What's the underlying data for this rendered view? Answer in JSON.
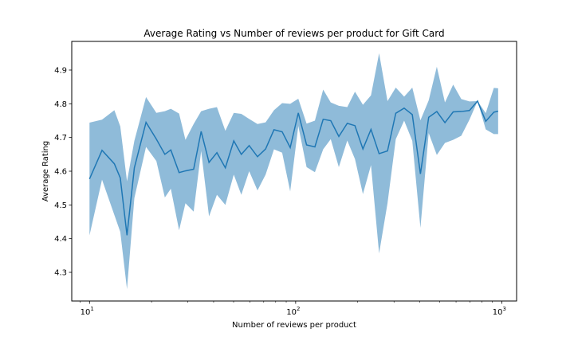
{
  "chart_data": {
    "type": "line",
    "title": "Average Rating vs Number of reviews per product for Gift Card",
    "xlabel": "Number of reviews per product",
    "ylabel": "Average Rating",
    "x_scale": "log",
    "xlim": [
      8.2,
      1180
    ],
    "ylim": [
      4.215,
      4.985
    ],
    "x_ticks": [
      {
        "value": 10,
        "base": "10",
        "exp": "1"
      },
      {
        "value": 100,
        "base": "10",
        "exp": "2"
      },
      {
        "value": 1000,
        "base": "10",
        "exp": "3"
      }
    ],
    "y_ticks": [
      "4.3",
      "4.4",
      "4.5",
      "4.6",
      "4.7",
      "4.8",
      "4.9"
    ],
    "grid": false,
    "line_color": "#1f77b4",
    "band_color": "#1f77b4",
    "series": [
      {
        "x": [
          10,
          11.5,
          13.2,
          14.1,
          15.2,
          16.5,
          18.8,
          21.1,
          23.2,
          24.8,
          27.2,
          29.2,
          32.0,
          34.8,
          38.0,
          41.5,
          45.6,
          50.1,
          54.5,
          59.5,
          65.3,
          71.5,
          78.5,
          86.0,
          94.1,
          103,
          113,
          124,
          136,
          148,
          162,
          178,
          194,
          212,
          232,
          254,
          279,
          306,
          336,
          368,
          403,
          442,
          484,
          530,
          581,
          636,
          697,
          763,
          836,
          915,
          960
        ],
        "mean": [
          4.577,
          4.662,
          4.622,
          4.58,
          4.41,
          4.61,
          4.745,
          4.695,
          4.65,
          4.663,
          4.596,
          4.601,
          4.606,
          4.718,
          4.626,
          4.655,
          4.61,
          4.69,
          4.65,
          4.676,
          4.643,
          4.666,
          4.723,
          4.717,
          4.67,
          4.773,
          4.678,
          4.672,
          4.754,
          4.75,
          4.703,
          4.742,
          4.735,
          4.666,
          4.724,
          4.652,
          4.66,
          4.772,
          4.787,
          4.768,
          4.592,
          4.76,
          4.777,
          4.744,
          4.776,
          4.777,
          4.78,
          4.808,
          4.748,
          4.775,
          4.778
        ],
        "lower": [
          4.41,
          4.575,
          4.47,
          4.42,
          4.25,
          4.52,
          4.672,
          4.63,
          4.522,
          4.548,
          4.425,
          4.505,
          4.48,
          4.66,
          4.466,
          4.53,
          4.5,
          4.59,
          4.53,
          4.6,
          4.543,
          4.59,
          4.665,
          4.655,
          4.54,
          4.734,
          4.612,
          4.597,
          4.665,
          4.695,
          4.612,
          4.691,
          4.636,
          4.532,
          4.618,
          4.356,
          4.505,
          4.695,
          4.75,
          4.69,
          4.432,
          4.713,
          4.648,
          4.684,
          4.693,
          4.705,
          4.753,
          4.808,
          4.724,
          4.71,
          4.71
        ],
        "upper": [
          4.744,
          4.753,
          4.781,
          4.733,
          4.57,
          4.69,
          4.82,
          4.773,
          4.778,
          4.785,
          4.771,
          4.693,
          4.74,
          4.778,
          4.785,
          4.79,
          4.72,
          4.773,
          4.77,
          4.755,
          4.74,
          4.745,
          4.781,
          4.802,
          4.8,
          4.815,
          4.741,
          4.75,
          4.842,
          4.804,
          4.794,
          4.79,
          4.836,
          4.797,
          4.825,
          4.95,
          4.808,
          4.848,
          4.821,
          4.848,
          4.751,
          4.81,
          4.91,
          4.804,
          4.857,
          4.814,
          4.807,
          4.808,
          4.772,
          4.847,
          4.846
        ]
      }
    ]
  }
}
